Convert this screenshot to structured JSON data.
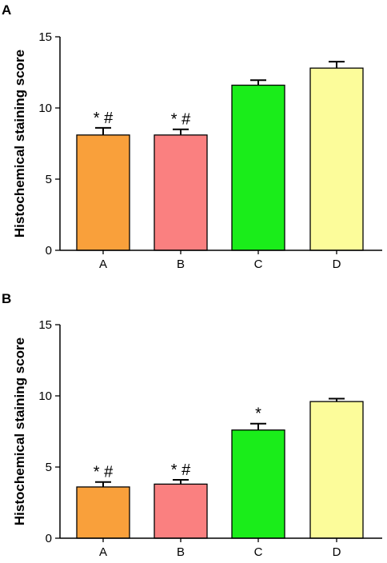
{
  "chart_data": [
    {
      "type": "bar",
      "panel_label": "A",
      "ylabel": "Histochemical staining score",
      "xlabel": "",
      "ylim": [
        0,
        15
      ],
      "yticks": [
        0,
        5,
        10,
        15
      ],
      "categories": [
        "A",
        "B",
        "C",
        "D"
      ],
      "values": [
        8.1,
        8.1,
        11.6,
        12.8
      ],
      "errors": [
        0.5,
        0.4,
        0.35,
        0.45
      ],
      "annotations": [
        "* #",
        "* #",
        "",
        ""
      ],
      "colors": [
        "#f9a03b",
        "#fa8080",
        "#1aed1a",
        "#fcfc9a"
      ],
      "grid": false,
      "legend": "none"
    },
    {
      "type": "bar",
      "panel_label": "B",
      "ylabel": "Histochemical staining score",
      "xlabel": "",
      "ylim": [
        0,
        15
      ],
      "yticks": [
        0,
        5,
        10,
        15
      ],
      "categories": [
        "A",
        "B",
        "C",
        "D"
      ],
      "values": [
        3.6,
        3.8,
        7.6,
        9.6
      ],
      "errors": [
        0.35,
        0.3,
        0.45,
        0.2
      ],
      "annotations": [
        "* #",
        "* #",
        "*",
        ""
      ],
      "colors": [
        "#f9a03b",
        "#fa8080",
        "#1aed1a",
        "#fcfc9a"
      ],
      "grid": false,
      "legend": "none"
    }
  ]
}
